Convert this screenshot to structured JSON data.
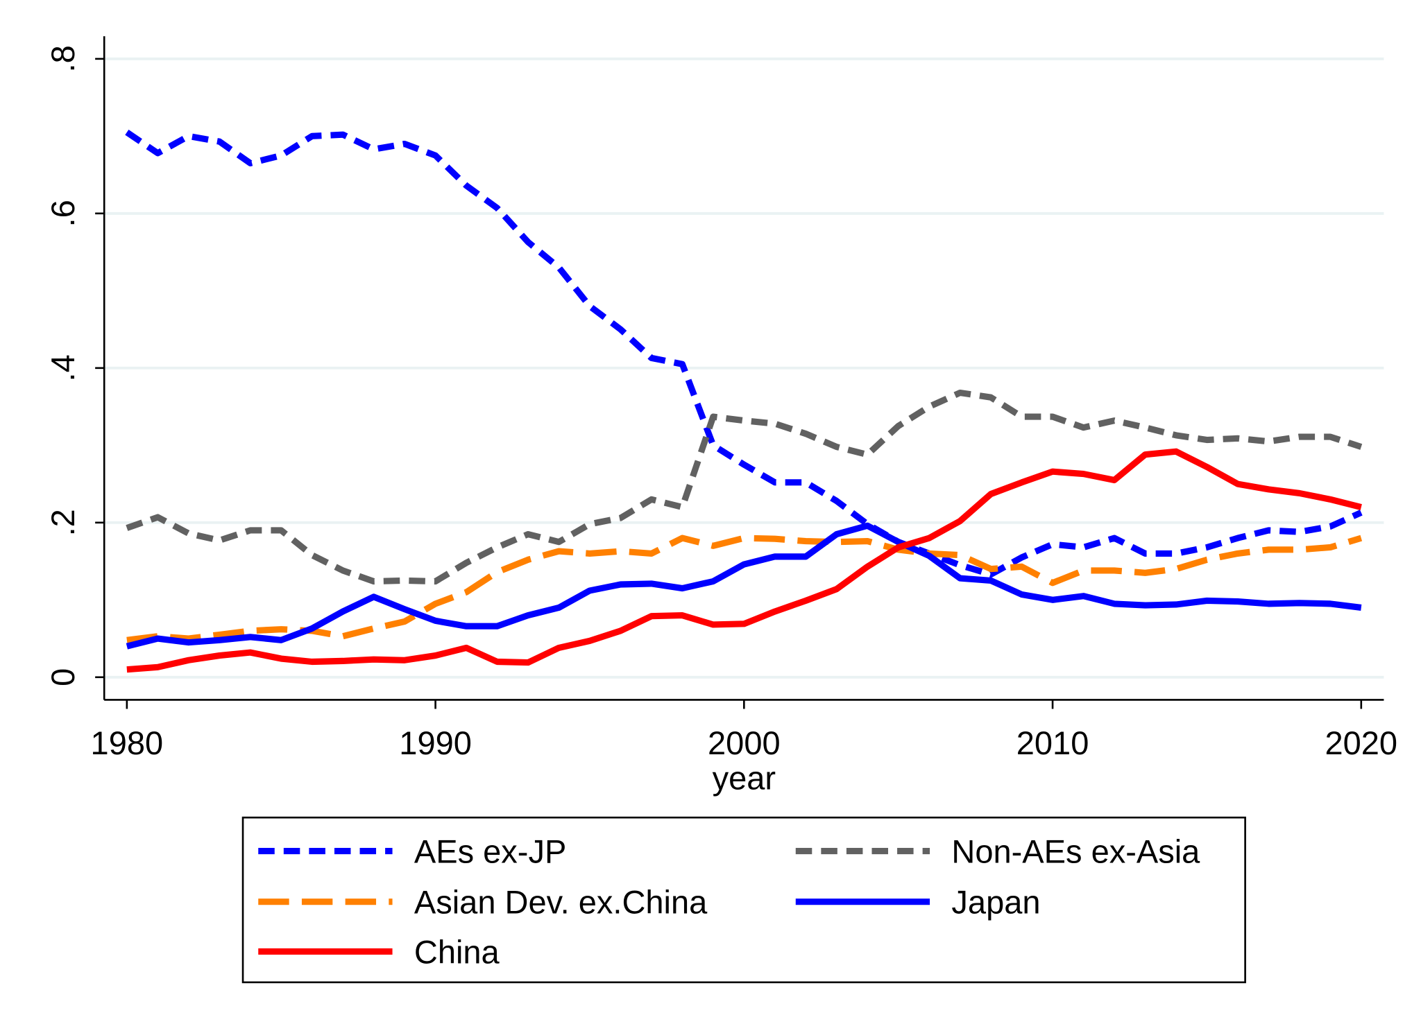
{
  "chart_data": {
    "type": "line",
    "xlabel": "year",
    "ylabel": "",
    "xlim": [
      1980,
      2020
    ],
    "ylim": [
      0,
      0.8
    ],
    "x_ticks": [
      1980,
      1990,
      2000,
      2010,
      2020
    ],
    "x_tick_labels": [
      "1980",
      "1990",
      "2000",
      "2010",
      "2020"
    ],
    "y_ticks": [
      0,
      0.2,
      0.4,
      0.6,
      0.8
    ],
    "y_tick_labels": [
      "0",
      ".2",
      ".4",
      ".6",
      ".8"
    ],
    "grid": "horizontal",
    "legend_position": "bottom",
    "x": [
      1980,
      1981,
      1982,
      1983,
      1984,
      1985,
      1986,
      1987,
      1988,
      1989,
      1990,
      1991,
      1992,
      1993,
      1994,
      1995,
      1996,
      1997,
      1998,
      1999,
      2000,
      2001,
      2002,
      2003,
      2004,
      2005,
      2006,
      2007,
      2008,
      2009,
      2010,
      2011,
      2012,
      2013,
      2014,
      2015,
      2016,
      2017,
      2018,
      2019,
      2020
    ],
    "series": [
      {
        "name": "AEs ex-JP",
        "color": "#0000ff",
        "style": "dash",
        "values": [
          0.705,
          0.678,
          0.7,
          0.693,
          0.665,
          0.675,
          0.7,
          0.702,
          0.683,
          0.69,
          0.675,
          0.636,
          0.607,
          0.563,
          0.53,
          0.48,
          0.45,
          0.413,
          0.405,
          0.3,
          0.275,
          0.252,
          0.252,
          0.228,
          0.198,
          0.175,
          0.16,
          0.145,
          0.133,
          0.155,
          0.172,
          0.168,
          0.18,
          0.16,
          0.16,
          0.168,
          0.18,
          0.19,
          0.188,
          0.195,
          0.213
        ]
      },
      {
        "name": "Non-AEs ex-Asia",
        "color": "#616161",
        "style": "dash",
        "values": [
          0.193,
          0.207,
          0.186,
          0.177,
          0.19,
          0.19,
          0.158,
          0.138,
          0.124,
          0.125,
          0.124,
          0.148,
          0.168,
          0.185,
          0.175,
          0.198,
          0.206,
          0.23,
          0.22,
          0.337,
          0.332,
          0.328,
          0.315,
          0.298,
          0.288,
          0.325,
          0.35,
          0.368,
          0.362,
          0.337,
          0.337,
          0.323,
          0.332,
          0.323,
          0.313,
          0.307,
          0.309,
          0.305,
          0.311,
          0.311,
          0.298
        ]
      },
      {
        "name": "Asian Dev. ex.China",
        "color": "#ff8000",
        "style": "longdash",
        "values": [
          0.048,
          0.053,
          0.05,
          0.055,
          0.06,
          0.062,
          0.06,
          0.053,
          0.063,
          0.072,
          0.095,
          0.11,
          0.136,
          0.152,
          0.163,
          0.16,
          0.163,
          0.16,
          0.18,
          0.17,
          0.18,
          0.179,
          0.176,
          0.175,
          0.176,
          0.165,
          0.16,
          0.158,
          0.14,
          0.143,
          0.122,
          0.138,
          0.138,
          0.135,
          0.14,
          0.152,
          0.16,
          0.165,
          0.165,
          0.168,
          0.18
        ]
      },
      {
        "name": "Japan",
        "color": "#0000ff",
        "style": "solid",
        "values": [
          0.04,
          0.05,
          0.045,
          0.048,
          0.052,
          0.048,
          0.063,
          0.085,
          0.104,
          0.088,
          0.073,
          0.066,
          0.066,
          0.08,
          0.09,
          0.112,
          0.12,
          0.121,
          0.115,
          0.124,
          0.146,
          0.156,
          0.156,
          0.185,
          0.196,
          0.175,
          0.157,
          0.128,
          0.125,
          0.107,
          0.1,
          0.105,
          0.095,
          0.093,
          0.094,
          0.099,
          0.098,
          0.095,
          0.096,
          0.095,
          0.09
        ]
      },
      {
        "name": "China",
        "color": "#ff0000",
        "style": "solid",
        "values": [
          0.01,
          0.013,
          0.022,
          0.028,
          0.032,
          0.024,
          0.02,
          0.021,
          0.023,
          0.022,
          0.028,
          0.038,
          0.02,
          0.019,
          0.038,
          0.047,
          0.06,
          0.079,
          0.08,
          0.068,
          0.069,
          0.085,
          0.099,
          0.114,
          0.143,
          0.168,
          0.18,
          0.202,
          0.237,
          0.252,
          0.266,
          0.263,
          0.255,
          0.288,
          0.292,
          0.272,
          0.25,
          0.243,
          0.238,
          0.23,
          0.22
        ]
      }
    ]
  }
}
